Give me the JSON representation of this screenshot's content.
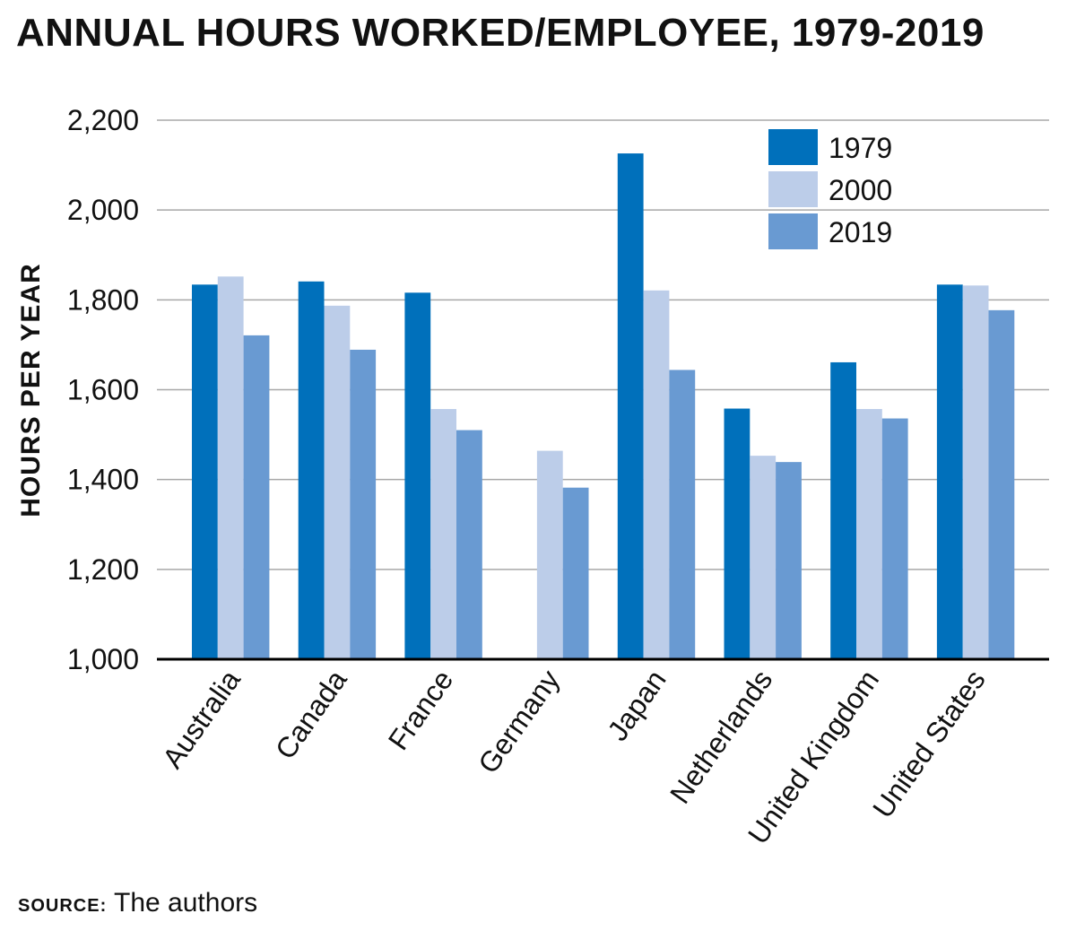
{
  "chart_data": {
    "type": "bar",
    "title": "ANNUAL HOURS WORKED/EMPLOYEE, 1979-2019",
    "ylabel": "HOURS PER YEAR",
    "xlabel": "",
    "categories": [
      "Australia",
      "Canada",
      "France",
      "Germany",
      "Japan",
      "Netherlands",
      "United Kingdom",
      "United States"
    ],
    "series": [
      {
        "name": "1979",
        "color": "#0070bb",
        "values": [
          1834,
          1841,
          1816,
          null,
          2126,
          1558,
          1661,
          1834
        ]
      },
      {
        "name": "2000",
        "color": "#bccde9",
        "values": [
          1852,
          1787,
          1557,
          1464,
          1821,
          1453,
          1557,
          1832
        ]
      },
      {
        "name": "2019",
        "color": "#699ad2",
        "values": [
          1721,
          1689,
          1510,
          1382,
          1644,
          1439,
          1536,
          1777
        ]
      }
    ],
    "ylim": [
      1000,
      2200
    ],
    "yticks": [
      1000,
      1200,
      1400,
      1600,
      1800,
      2000,
      2200
    ],
    "ytick_labels": [
      "1,000",
      "1,200",
      "1,400",
      "1,600",
      "1,800",
      "2,000",
      "2,200"
    ],
    "grid": true,
    "legend_position": "top-right"
  },
  "source": {
    "label": "SOURCE:",
    "text": "The authors"
  }
}
